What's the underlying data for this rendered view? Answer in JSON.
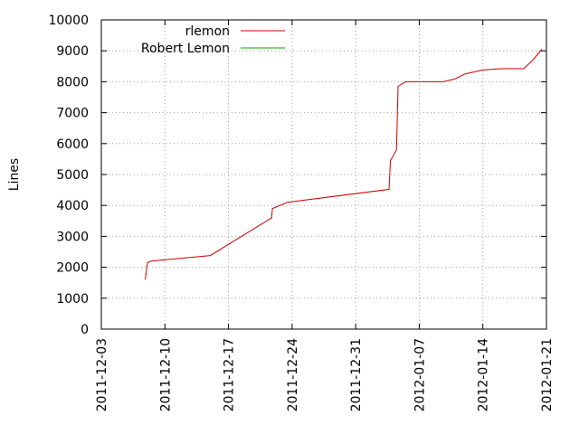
{
  "chart_data": {
    "type": "line",
    "title": "",
    "xlabel": "",
    "ylabel": "Lines",
    "x_axis": {
      "type": "date",
      "range": [
        "2011-12-03",
        "2012-01-21"
      ],
      "ticks": [
        "2011-12-03",
        "2011-12-10",
        "2011-12-17",
        "2011-12-24",
        "2011-12-31",
        "2012-01-07",
        "2012-01-14",
        "2012-01-21"
      ]
    },
    "y_axis": {
      "range": [
        0,
        10000
      ],
      "ticks": [
        "0",
        "1000",
        "2000",
        "3000",
        "4000",
        "5000",
        "6000",
        "7000",
        "8000",
        "9000",
        "10000"
      ],
      "grid": true
    },
    "legend": {
      "placement": "top-left"
    },
    "series": [
      {
        "name": "rlemon",
        "color": "#cc0000",
        "points": [
          [
            "2011-12-07T20:00",
            1600
          ],
          [
            "2011-12-08T02:00",
            2150
          ],
          [
            "2011-12-08T12:00",
            2200
          ],
          [
            "2011-12-15T00:00",
            2380
          ],
          [
            "2011-12-21T18:00",
            3600
          ],
          [
            "2011-12-21T20:00",
            3900
          ],
          [
            "2011-12-23T12:00",
            4100
          ],
          [
            "2012-01-03T16:00",
            4520
          ],
          [
            "2012-01-03T20:00",
            5450
          ],
          [
            "2012-01-04T12:00",
            5800
          ],
          [
            "2012-01-04T16:00",
            7850
          ],
          [
            "2012-01-05T12:00",
            8000
          ],
          [
            "2012-01-09T16:00",
            8000
          ],
          [
            "2012-01-11T00:00",
            8100
          ],
          [
            "2012-01-12T00:00",
            8250
          ],
          [
            "2012-01-14T00:00",
            8380
          ],
          [
            "2012-01-16T00:00",
            8420
          ],
          [
            "2012-01-18T12:00",
            8420
          ],
          [
            "2012-01-19T12:00",
            8700
          ],
          [
            "2012-01-20T12:00",
            9050
          ]
        ]
      },
      {
        "name": "Robert Lemon",
        "color": "#00aa00",
        "points": []
      }
    ]
  }
}
